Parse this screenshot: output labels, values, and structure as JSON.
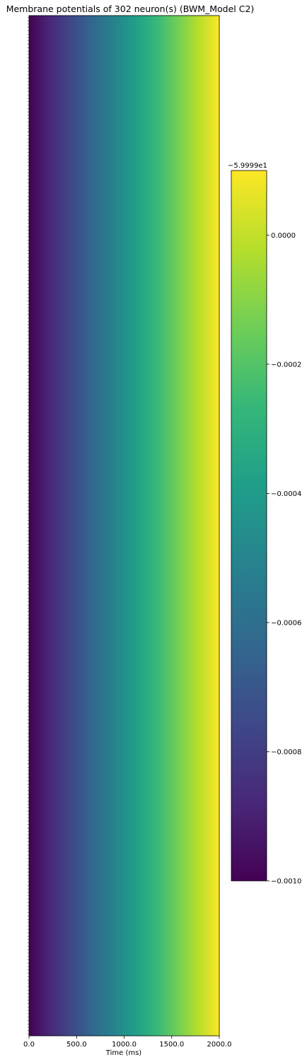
{
  "chart_data": {
    "type": "heatmap",
    "title": "Membrane potentials of 302 neuron(s) (BWM_Model C2)",
    "xlabel": "Time (ms)",
    "ylabel": "",
    "xlim": [
      0,
      2000
    ],
    "x_ticks": [
      "0.0",
      "500.0",
      "1000.0",
      "1500.0",
      "2000.0"
    ],
    "value_range": [
      -0.001,
      0.0
    ],
    "colorbar": {
      "offset_label": "−5.9999e1",
      "offset": -59.999,
      "range": [
        -0.001,
        0.0001
      ],
      "ticks": [
        "0.0000",
        "−0.0002",
        "−0.0004",
        "−0.0006",
        "−0.0008",
        "−0.0010"
      ],
      "tick_values": [
        0.0,
        -0.0002,
        -0.0004,
        -0.0006,
        -0.0008,
        -0.001
      ]
    },
    "colormap": "viridis",
    "colormap_stops": [
      "#440154",
      "#482878",
      "#3e4989",
      "#31688e",
      "#26828e",
      "#1f9e89",
      "#35b779",
      "#6ece58",
      "#b5de2b",
      "#fde725"
    ],
    "row_count": 302,
    "row_label_count": 302,
    "note_pattern": "all rows identical; value rises linearly from -0.0010 at 0 ms to ~0.0001 at 2000 ms"
  }
}
